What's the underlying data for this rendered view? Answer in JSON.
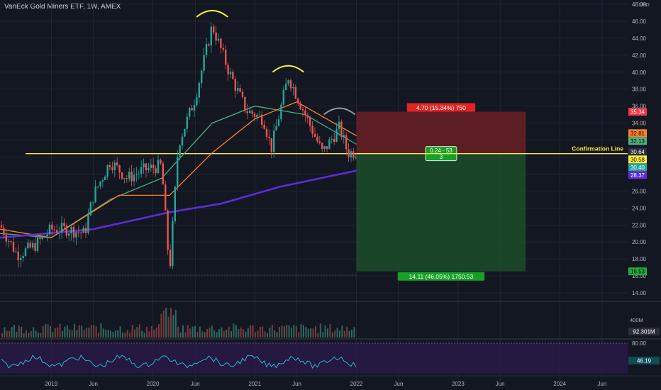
{
  "header": {
    "title": "VanEck Gold Miners ETF, 1W, AMEX",
    "currency": "USD"
  },
  "colors": {
    "background": "#131722",
    "grid": "#2a2e39",
    "up": "#26a69a",
    "down": "#ef5350",
    "confirmation": "#ffeb3b",
    "ma_fast": "#4caf7d",
    "ma_mid": "#ff7f2a",
    "ma_slow": "#5c2dd6",
    "loss_zone": "#6a1f24",
    "profit_zone": "#1d4d2a",
    "rsi": "#26c6da"
  },
  "chart_data": {
    "type": "line",
    "subtype": "candlestick",
    "title": "VanEck Gold Miners ETF, 1W, AMEX",
    "yaxis": {
      "ticks": [
        14,
        16,
        18,
        20,
        22,
        24,
        26,
        28,
        30,
        32,
        34,
        36,
        38,
        40,
        42,
        44,
        46,
        48
      ],
      "range": [
        13,
        48.5
      ]
    },
    "xaxis": {
      "ticks": [
        "2019",
        "Jun",
        "2020",
        "Jun",
        "2021",
        "Jun",
        "2022",
        "Jun",
        "2023",
        "Jun",
        "2024",
        "Jun"
      ]
    },
    "price_series": [
      {
        "date": "2018-07",
        "value": 22.0
      },
      {
        "date": "2018-09",
        "value": 18.5
      },
      {
        "date": "2018-11",
        "value": 19.5
      },
      {
        "date": "2019-01",
        "value": 21.5
      },
      {
        "date": "2019-03",
        "value": 21.5
      },
      {
        "date": "2019-05",
        "value": 21.0
      },
      {
        "date": "2019-06",
        "value": 25.5
      },
      {
        "date": "2019-08",
        "value": 29.5
      },
      {
        "date": "2019-10",
        "value": 27.5
      },
      {
        "date": "2019-12",
        "value": 28.5
      },
      {
        "date": "2020-02",
        "value": 29.0
      },
      {
        "date": "2020-03",
        "value": 16.5
      },
      {
        "date": "2020-04",
        "value": 31.5
      },
      {
        "date": "2020-06",
        "value": 37.0
      },
      {
        "date": "2020-08",
        "value": 45.5
      },
      {
        "date": "2020-10",
        "value": 40.0
      },
      {
        "date": "2020-12",
        "value": 35.5
      },
      {
        "date": "2021-02",
        "value": 34.5
      },
      {
        "date": "2021-03",
        "value": 31.0
      },
      {
        "date": "2021-05",
        "value": 39.5
      },
      {
        "date": "2021-07",
        "value": 35.0
      },
      {
        "date": "2021-09",
        "value": 30.5
      },
      {
        "date": "2021-11",
        "value": 33.5
      },
      {
        "date": "2021-12",
        "value": 30.5
      },
      {
        "date": "2022-01",
        "value": 30.6
      }
    ],
    "moving_averages": [
      {
        "name": "MA fast",
        "color": "#4caf7d",
        "points": [
          {
            "date": "2018-07",
            "value": 21.0
          },
          {
            "date": "2019-01",
            "value": 20.5
          },
          {
            "date": "2019-08",
            "value": 25.0
          },
          {
            "date": "2020-02",
            "value": 27.5
          },
          {
            "date": "2020-08",
            "value": 34.0
          },
          {
            "date": "2021-01",
            "value": 36.0
          },
          {
            "date": "2021-07",
            "value": 35.0
          },
          {
            "date": "2022-01",
            "value": 31.5
          }
        ]
      },
      {
        "name": "MA mid",
        "color": "#ff7f2a",
        "points": [
          {
            "date": "2018-07",
            "value": 21.5
          },
          {
            "date": "2019-01",
            "value": 20.5
          },
          {
            "date": "2019-09",
            "value": 25.5
          },
          {
            "date": "2020-03",
            "value": 25.5
          },
          {
            "date": "2020-08",
            "value": 30.5
          },
          {
            "date": "2021-01",
            "value": 34.5
          },
          {
            "date": "2021-06",
            "value": 36.5
          },
          {
            "date": "2022-01",
            "value": 32.5
          }
        ]
      },
      {
        "name": "MA slow",
        "color": "#5c2dd6",
        "points": [
          {
            "date": "2018-07",
            "value": 20.5
          },
          {
            "date": "2019-06",
            "value": 21.5
          },
          {
            "date": "2020-03",
            "value": 23.5
          },
          {
            "date": "2020-09",
            "value": 24.5
          },
          {
            "date": "2021-04",
            "value": 26.5
          },
          {
            "date": "2022-01",
            "value": 28.4
          }
        ]
      }
    ],
    "confirmation_line": {
      "value": 30.4,
      "label": "Confirmation Line"
    },
    "position": {
      "entry": 30.4,
      "stop": 35.34,
      "target": 16.53,
      "stop_label": "4.70 (15.34%) 750",
      "target_label": "14.11 (46.05%) 1750.53",
      "ratio_label_1": "0.24 - 53",
      "ratio_label_2": "3"
    },
    "price_labels": [
      {
        "value": 35.34,
        "text": "35.34",
        "bg": "#f23645",
        "fg": "#ffffff"
      },
      {
        "value": 32.81,
        "text": "32.81",
        "bg": "#ff7f2a",
        "fg": "#000000"
      },
      {
        "value": 32.13,
        "text": "32.13",
        "bg": "#4caf7d",
        "fg": "#000000"
      },
      {
        "value": 30.64,
        "text": "30.64",
        "bg": "#2a2e39",
        "fg": "#ffffff"
      },
      {
        "value": 30.58,
        "text": "30.58",
        "bg": "#ffeb3b",
        "fg": "#000000"
      },
      {
        "value": 30.4,
        "text": "30.40",
        "bg": "#26a69a",
        "fg": "#ffffff"
      },
      {
        "value": 28.37,
        "text": "28.37",
        "bg": "#5c2dd6",
        "fg": "#ffffff"
      },
      {
        "value": 16.53,
        "text": "16.53",
        "bg": "#22ab3c",
        "fg": "#000000"
      }
    ],
    "volume": {
      "axis_label": "400M",
      "last_label": "92.301M"
    },
    "rsi": {
      "value": 46.19,
      "label": "46.19",
      "upper": 80,
      "upper_label": "80.00"
    },
    "annotations": [
      "head-and-shoulders arcs: left shoulder 2020-08, head 2021-05, right shoulder 2021-11"
    ]
  }
}
